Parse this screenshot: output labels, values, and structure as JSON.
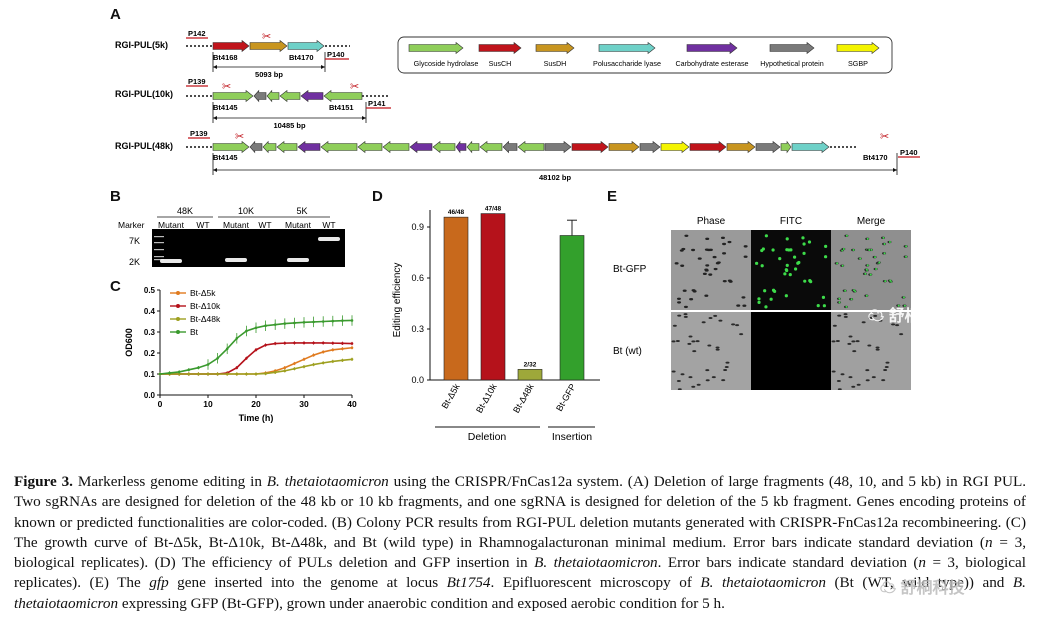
{
  "panels": {
    "a": {
      "letter": "A",
      "rows": [
        {
          "label": "RGI-PUL(5k)",
          "primer_left": "P142",
          "primer_right": "P140",
          "gene_left": "Bt4168",
          "gene_right": "Bt4170",
          "size": "5093 bp"
        },
        {
          "label": "RGI-PUL(10k)",
          "primer_left": "P139",
          "primer_right": "P141",
          "gene_left": "Bt4145",
          "gene_right": "Bt4151",
          "size": "10485 bp"
        },
        {
          "label": "RGI-PUL(48k)",
          "primer_left": "P139",
          "primer_right": "P140",
          "gene_left": "Bt4145",
          "gene_right": "Bt4170",
          "size": "48102 bp"
        }
      ],
      "legend": [
        {
          "name": "Glycoside hydrolase",
          "color": "#8fce5a"
        },
        {
          "name": "SusCH",
          "color": "#c0141b"
        },
        {
          "name": "SusDH",
          "color": "#c8951f"
        },
        {
          "name": "Polusaccharide lyase",
          "color": "#6ed1c8"
        },
        {
          "name": "Carbohydrate esterase",
          "color": "#7030a0"
        },
        {
          "name": "Hypothetical protein",
          "color": "#7a7a7a"
        },
        {
          "name": "SGBP",
          "color": "#f4f400"
        }
      ]
    },
    "b": {
      "letter": "B",
      "marker_label": "Marker",
      "groups": [
        "48K",
        "10K",
        "5K"
      ],
      "lanes": [
        "Mutant",
        "WT",
        "Mutant",
        "WT",
        "Mutant",
        "WT"
      ],
      "size_labels": [
        "7K",
        "2K"
      ]
    },
    "c": {
      "letter": "C",
      "series_names": [
        "Bt-Δ5k",
        "Bt-Δ10k",
        "Bt-Δ48k",
        "Bt"
      ],
      "x_ticks": [
        "0",
        "10",
        "20",
        "30",
        "40"
      ],
      "y_ticks": [
        "0.0",
        "0.1",
        "0.2",
        "0.3",
        "0.4",
        "0.5"
      ]
    },
    "d": {
      "letter": "D",
      "ylabel": "Editing efficiency",
      "group_labels": [
        "Deletion",
        "Insertion"
      ],
      "y_ticks": [
        "0.0",
        "0.3",
        "0.6",
        "0.9"
      ]
    },
    "e": {
      "letter": "E",
      "columns": [
        "Phase",
        "FITC",
        "Merge"
      ],
      "rows": [
        "Bt-GFP",
        "Bt (wt)"
      ]
    }
  },
  "chart_data": [
    {
      "type": "line",
      "xlabel": "Time (h)",
      "ylabel": "OD600",
      "xlim": [
        0,
        40
      ],
      "ylim": [
        0,
        0.5
      ],
      "x": [
        0,
        2,
        4,
        6,
        8,
        10,
        12,
        14,
        16,
        18,
        20,
        22,
        24,
        26,
        28,
        30,
        32,
        34,
        36,
        38,
        40
      ],
      "series": [
        {
          "name": "Bt-Δ5k",
          "color": "#e07b20",
          "values": [
            0.1,
            0.1,
            0.1,
            0.1,
            0.1,
            0.1,
            0.1,
            0.1,
            0.1,
            0.1,
            0.1,
            0.105,
            0.115,
            0.13,
            0.15,
            0.17,
            0.19,
            0.205,
            0.215,
            0.22,
            0.225
          ]
        },
        {
          "name": "Bt-Δ10k",
          "color": "#b5121b",
          "values": [
            0.1,
            0.1,
            0.1,
            0.1,
            0.1,
            0.1,
            0.1,
            0.105,
            0.13,
            0.175,
            0.215,
            0.238,
            0.245,
            0.247,
            0.248,
            0.248,
            0.248,
            0.248,
            0.247,
            0.246,
            0.245
          ]
        },
        {
          "name": "Bt-Δ48k",
          "color": "#9ea020",
          "values": [
            0.1,
            0.1,
            0.1,
            0.1,
            0.1,
            0.1,
            0.1,
            0.1,
            0.1,
            0.1,
            0.1,
            0.102,
            0.108,
            0.115,
            0.125,
            0.135,
            0.145,
            0.153,
            0.16,
            0.165,
            0.17
          ]
        },
        {
          "name": "Bt",
          "color": "#3a9a2e",
          "values": [
            0.1,
            0.105,
            0.11,
            0.12,
            0.13,
            0.145,
            0.175,
            0.22,
            0.27,
            0.305,
            0.32,
            0.33,
            0.335,
            0.34,
            0.343,
            0.346,
            0.348,
            0.35,
            0.352,
            0.354,
            0.355
          ]
        }
      ]
    },
    {
      "type": "bar",
      "ylabel": "Editing efficiency",
      "ylim": [
        0,
        1.0
      ],
      "categories": [
        "Bt-Δ5k",
        "Bt-Δ10k",
        "Bt-Δ48k",
        "Bt-GFP"
      ],
      "values": [
        0.958,
        0.979,
        0.0625,
        0.85
      ],
      "data_labels": [
        "46/48",
        "47/48",
        "2/32",
        ""
      ],
      "colors": [
        "#c8691c",
        "#b5121b",
        "#9ea83a",
        "#33a02c"
      ],
      "error": [
        0,
        0,
        0,
        0.09
      ]
    }
  ],
  "caption": {
    "label": "Figure 3.",
    "s1": " Markerless genome editing in ",
    "s1i": "B. thetaiotaomicron",
    "s2": " using the CRISPR/FnCas12a system. (A) Deletion of large fragments (48, 10, and 5 kb) in RGI PUL. Two sgRNAs are designed for deletion of the 48 kb or 10 kb fragments, and one sgRNA is designed for deletion of the 5 kb fragment. Genes encoding proteins of known or predicted functionalities are color-coded. (B) Colony PCR results from RGI-PUL deletion mutants generated with CRISPR-FnCas12a recombineering. (C) The growth curve of Bt-Δ5k, Bt-Δ10k, Bt-Δ48k, and Bt (wild type) in Rhamnogalacturonan minimal medium. Error bars indicate standard deviation (",
    "s2i": "n",
    "s3": " = 3, biological replicates). (D) The efficiency of PULs deletion and GFP insertion in ",
    "s3i": "B. thetaiotaomicron",
    "s4": ". Error bars indicate standard deviation (",
    "s4i": "n",
    "s5": " = 3, biological replicates). (E) The ",
    "s5i": "gfp",
    "s6": " gene inserted into the genome at locus ",
    "s6i": "Bt1754",
    "s7": ". Epifluorescent microscopy of ",
    "s7i": "B. thetaiotaomicron",
    "s8": " (Bt (WT, wild type)) and ",
    "s8i": "B. thetaiotaomicron",
    "s9": " expressing GFP (Bt-GFP), grown under anaerobic condition and exposed aerobic condition for 5 h."
  },
  "watermark": {
    "text": "舒桐科技"
  }
}
